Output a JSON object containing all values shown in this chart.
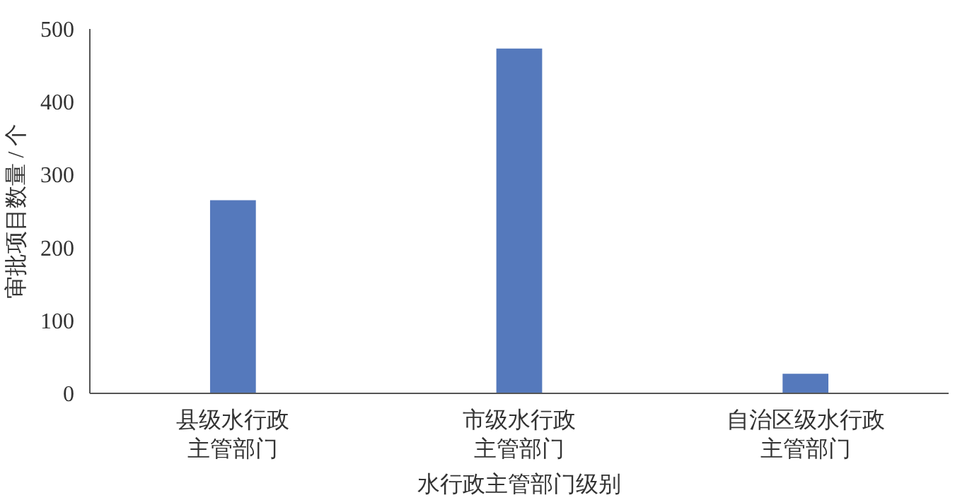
{
  "chart_data": {
    "type": "bar",
    "xlabel": "水行政主管部门级别",
    "ylabel": "审批项目数量 / 个",
    "categories": [
      "县级水行政主管部门",
      "市级水行政主管部门",
      "自治区级水行政主管部门"
    ],
    "values": [
      265,
      473,
      27
    ],
    "color": "#5579bc",
    "ylim": [
      0,
      500
    ],
    "yticks": [
      0,
      100,
      200,
      300,
      400,
      500
    ],
    "grid": false
  }
}
